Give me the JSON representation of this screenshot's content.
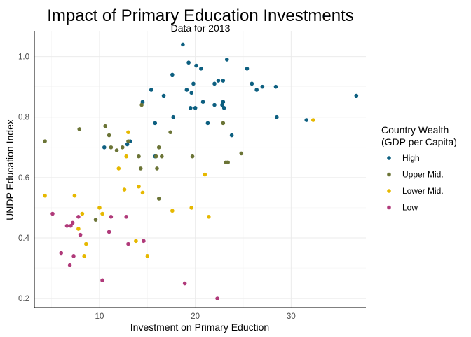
{
  "chart_data": {
    "type": "scatter",
    "title": "Impact of Primary Education Investments",
    "subtitle": "Data for 2013",
    "xlabel": "Investment on Primary Eduction",
    "ylabel": "UNDP Education Index",
    "xlim": [
      3.2,
      37.8
    ],
    "ylim": [
      0.17,
      1.085
    ],
    "xticks": [
      10,
      20,
      30
    ],
    "yticks": [
      0.2,
      0.4,
      0.6,
      0.8,
      1.0
    ],
    "ytick_labels": [
      "0.2",
      "0.4",
      "0.6",
      "0.8",
      "1.0"
    ],
    "grid": true,
    "legend": {
      "title_line1": "Country Wealth",
      "title_line2": "(GDP per Capita)",
      "position": "right"
    },
    "series": [
      {
        "name": "High",
        "color": "#0d5f80",
        "points": [
          [
            18.7,
            1.04
          ],
          [
            19.3,
            0.98
          ],
          [
            23.3,
            0.99
          ],
          [
            20.1,
            0.97
          ],
          [
            20.6,
            0.96
          ],
          [
            25.4,
            0.96
          ],
          [
            17.6,
            0.94
          ],
          [
            22.0,
            0.91
          ],
          [
            22.4,
            0.92
          ],
          [
            22.9,
            0.92
          ],
          [
            19.8,
            0.91
          ],
          [
            25.9,
            0.91
          ],
          [
            28.4,
            0.9
          ],
          [
            27.0,
            0.9
          ],
          [
            26.4,
            0.89
          ],
          [
            15.4,
            0.89
          ],
          [
            19.1,
            0.89
          ],
          [
            19.6,
            0.88
          ],
          [
            16.7,
            0.87
          ],
          [
            36.8,
            0.87
          ],
          [
            14.5,
            0.85
          ],
          [
            20.8,
            0.85
          ],
          [
            22.8,
            0.84
          ],
          [
            22.0,
            0.84
          ],
          [
            22.9,
            0.85
          ],
          [
            19.5,
            0.83
          ],
          [
            20.0,
            0.83
          ],
          [
            23.0,
            0.83
          ],
          [
            17.7,
            0.8
          ],
          [
            28.5,
            0.8
          ],
          [
            31.6,
            0.79
          ],
          [
            15.8,
            0.78
          ],
          [
            21.3,
            0.78
          ],
          [
            23.8,
            0.74
          ],
          [
            13.2,
            0.72
          ],
          [
            12.9,
            0.71
          ],
          [
            10.5,
            0.7
          ],
          [
            15.8,
            0.67
          ]
        ]
      },
      {
        "name": "Upper Mid.",
        "color": "#6b7436",
        "points": [
          [
            14.4,
            0.84
          ],
          [
            10.6,
            0.77
          ],
          [
            7.9,
            0.76
          ],
          [
            11.0,
            0.74
          ],
          [
            4.3,
            0.72
          ],
          [
            13.0,
            0.72
          ],
          [
            11.2,
            0.7
          ],
          [
            11.8,
            0.69
          ],
          [
            12.4,
            0.7
          ],
          [
            14.1,
            0.67
          ],
          [
            16.2,
            0.7
          ],
          [
            15.9,
            0.67
          ],
          [
            16.5,
            0.67
          ],
          [
            19.7,
            0.67
          ],
          [
            24.8,
            0.68
          ],
          [
            16.0,
            0.63
          ],
          [
            14.3,
            0.63
          ],
          [
            17.4,
            0.75
          ],
          [
            22.9,
            0.78
          ],
          [
            23.2,
            0.65
          ],
          [
            23.4,
            0.65
          ],
          [
            16.2,
            0.53
          ],
          [
            9.6,
            0.46
          ]
        ]
      },
      {
        "name": "Lower Mid.",
        "color": "#e6b800",
        "points": [
          [
            32.3,
            0.79
          ],
          [
            13.0,
            0.75
          ],
          [
            12.8,
            0.67
          ],
          [
            12.0,
            0.63
          ],
          [
            21.0,
            0.61
          ],
          [
            4.3,
            0.54
          ],
          [
            7.4,
            0.54
          ],
          [
            12.6,
            0.56
          ],
          [
            14.1,
            0.57
          ],
          [
            14.5,
            0.55
          ],
          [
            10.0,
            0.5
          ],
          [
            17.6,
            0.49
          ],
          [
            19.6,
            0.5
          ],
          [
            10.3,
            0.48
          ],
          [
            8.2,
            0.48
          ],
          [
            21.4,
            0.47
          ],
          [
            7.8,
            0.43
          ],
          [
            8.6,
            0.38
          ],
          [
            13.8,
            0.39
          ],
          [
            8.4,
            0.34
          ],
          [
            15.0,
            0.34
          ]
        ]
      },
      {
        "name": "Low",
        "color": "#b03a7a",
        "points": [
          [
            5.1,
            0.48
          ],
          [
            7.8,
            0.47
          ],
          [
            11.2,
            0.47
          ],
          [
            12.8,
            0.47
          ],
          [
            7.2,
            0.45
          ],
          [
            6.6,
            0.44
          ],
          [
            7.0,
            0.44
          ],
          [
            11.0,
            0.42
          ],
          [
            8.0,
            0.41
          ],
          [
            14.6,
            0.39
          ],
          [
            13.0,
            0.38
          ],
          [
            6.0,
            0.35
          ],
          [
            7.3,
            0.34
          ],
          [
            6.9,
            0.31
          ],
          [
            10.3,
            0.26
          ],
          [
            18.9,
            0.25
          ],
          [
            22.3,
            0.2
          ]
        ]
      }
    ]
  }
}
